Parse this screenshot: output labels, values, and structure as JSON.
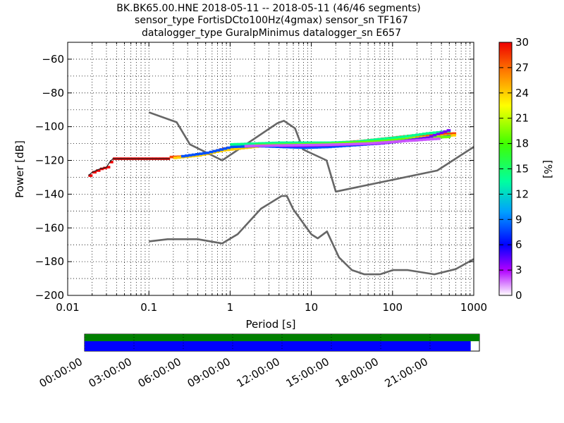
{
  "title_lines": [
    "BK.BK65.00.HNE   2018-05-11 -- 2018-05-11  (46/46 segments)",
    "sensor_type FortisDCto100Hz(4gmax) sensor_sn TF167",
    "datalogger_type GuralpMinimus datalogger_sn E657"
  ],
  "chart_data": {
    "type": "heatmap",
    "xlabel": "Period [s]",
    "ylabel": "Power [dB]",
    "x_scale": "log",
    "xlim": [
      0.01,
      1000
    ],
    "ylim": [
      -200,
      -50
    ],
    "x_tick_labels": [
      "0.01",
      "0.1",
      "1",
      "10",
      "100",
      "1000"
    ],
    "y_tick_labels": [
      "−200",
      "−180",
      "−160",
      "−140",
      "−120",
      "−100",
      "−80",
      "−60"
    ],
    "grid": true,
    "colorbar": {
      "label": "[%]",
      "range": [
        0,
        30
      ],
      "tick_labels": [
        "0",
        "3",
        "6",
        "9",
        "12",
        "15",
        "18",
        "21",
        "24",
        "27",
        "30"
      ]
    },
    "reference_curves": [
      {
        "x": [
          0.1,
          0.17,
          0.4,
          0.8,
          1.24,
          2.4,
          4.3,
          5.0,
          6.0,
          10.0,
          12.0,
          15.6,
          21.9,
          31.6,
          45.0,
          70.0,
          101,
          154,
          328,
          600,
          1000
        ],
        "y": [
          -168,
          -166.7,
          -166.7,
          -169.2,
          -163.7,
          -148.6,
          -141.1,
          -141.1,
          -149.0,
          -163.8,
          -166.2,
          -162.1,
          -177.5,
          -185.0,
          -187.5,
          -187.5,
          -185.0,
          -185.0,
          -187.5,
          -184.4,
          -178.5
        ]
      },
      {
        "x": [
          0.1,
          0.22,
          0.32,
          0.8,
          3.8,
          4.6,
          6.3,
          7.9,
          15.4,
          20.0,
          354.8,
          1000
        ],
        "y": [
          -91.5,
          -97.4,
          -110.5,
          -120.0,
          -98.0,
          -96.5,
          -101.0,
          -113.5,
          -120.0,
          -138.5,
          -126.0,
          -112.0
        ]
      }
    ],
    "ppsd_segments": [
      {
        "x": [
          0.018,
          0.02,
          0.025,
          0.03,
          0.033,
          0.036,
          0.05,
          0.1,
          0.18
        ],
        "y": [
          -129,
          -127,
          -125,
          -124,
          -121,
          -119,
          -119,
          -119,
          -119
        ],
        "percent": 30
      },
      {
        "x": [
          0.18,
          0.3,
          0.5,
          0.8,
          1.2,
          2.0,
          3.0,
          5.0,
          8.0,
          12.0,
          20.0,
          40.0,
          80.0,
          150.0,
          300.0,
          600.0
        ],
        "y": [
          -118,
          -117.5,
          -116,
          -113,
          -112,
          -111,
          -110.5,
          -110.2,
          -110.5,
          -110.3,
          -109.5,
          -108.5,
          -107,
          -105.5,
          -104.5,
          -104
        ],
        "percent": 28
      },
      {
        "x": [
          0.2,
          0.4,
          0.8,
          1.5,
          3.0,
          6.0,
          12.0,
          25.0,
          50.0,
          100.0,
          200.0,
          400.0,
          600.0
        ],
        "y": [
          -118.5,
          -117,
          -114,
          -112.5,
          -111,
          -110.8,
          -111,
          -110,
          -109,
          -107.5,
          -106.5,
          -105.5,
          -105
        ],
        "percent": 24
      },
      {
        "x": [
          0.25,
          0.5,
          1.0,
          2.0,
          4.0,
          8.0,
          16.0,
          32.0,
          64.0,
          128.0,
          256.0,
          512.0
        ],
        "y": [
          -117.5,
          -115.5,
          -112,
          -111.5,
          -112,
          -112.5,
          -112,
          -111,
          -110,
          -108.5,
          -107,
          -105.5
        ],
        "percent": 8
      },
      {
        "x": [
          1.0,
          2.0,
          4.0,
          8.0,
          16.0,
          32.0,
          64.0,
          128.0,
          256.0,
          512.0
        ],
        "y": [
          -110.5,
          -110,
          -109.5,
          -109.5,
          -109.5,
          -109,
          -107.5,
          -106,
          -104,
          -102.5
        ],
        "percent": 14
      },
      {
        "x": [
          2.0,
          4.0,
          8.0,
          16.0,
          32.0,
          64.0,
          128.0,
          256.0,
          512.0
        ],
        "y": [
          -111,
          -110.7,
          -110.5,
          -110.2,
          -109.5,
          -108.7,
          -107.5,
          -106.5,
          -106
        ],
        "percent": 19
      },
      {
        "x": [
          4.0,
          8.0,
          16.0,
          32.0,
          64.0,
          128.0,
          256.0,
          512.0
        ],
        "y": [
          -111.5,
          -111.5,
          -111,
          -110.5,
          -110,
          -108.5,
          -106.5,
          -101.5
        ],
        "percent": 4
      },
      {
        "x": [
          1.5,
          3.0,
          6.0,
          12.0,
          24.0,
          48.0,
          96.0,
          192.0,
          384.0
        ],
        "y": [
          -111.5,
          -111.2,
          -111,
          -110.8,
          -110.5,
          -110,
          -109,
          -108,
          -107
        ],
        "percent": 2
      }
    ]
  },
  "timeline": {
    "tick_labels": [
      "00:00:00",
      "03:00:00",
      "06:00:00",
      "09:00:00",
      "12:00:00",
      "15:00:00",
      "18:00:00",
      "21:00:00"
    ],
    "data_fraction": 1.0,
    "segments_fraction": 0.978,
    "colors": {
      "data": "#008000",
      "segments": "#0000ff"
    }
  }
}
